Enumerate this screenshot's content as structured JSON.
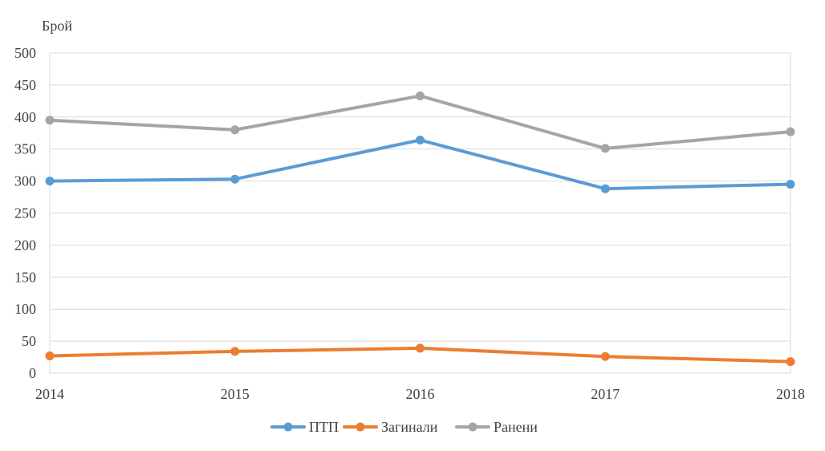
{
  "chart_data": {
    "type": "line",
    "title": "",
    "xlabel": "",
    "ylabel": "Брой",
    "x": [
      "2014",
      "2015",
      "2016",
      "2017",
      "2018"
    ],
    "ylim": [
      0,
      500
    ],
    "yticks": [
      "0",
      "50",
      "100",
      "150",
      "200",
      "250",
      "300",
      "350",
      "400",
      "450",
      "500"
    ],
    "grid": true,
    "legend_position": "bottom",
    "series": [
      {
        "name": "ПТП",
        "color": "#5b9bd5",
        "values": [
          300,
          303,
          364,
          288,
          295
        ]
      },
      {
        "name": "Загинали",
        "color": "#ed7d31",
        "values": [
          27,
          34,
          39,
          26,
          18
        ]
      },
      {
        "name": "Ранени",
        "color": "#a5a5a5",
        "values": [
          395,
          380,
          433,
          351,
          377
        ]
      }
    ]
  }
}
